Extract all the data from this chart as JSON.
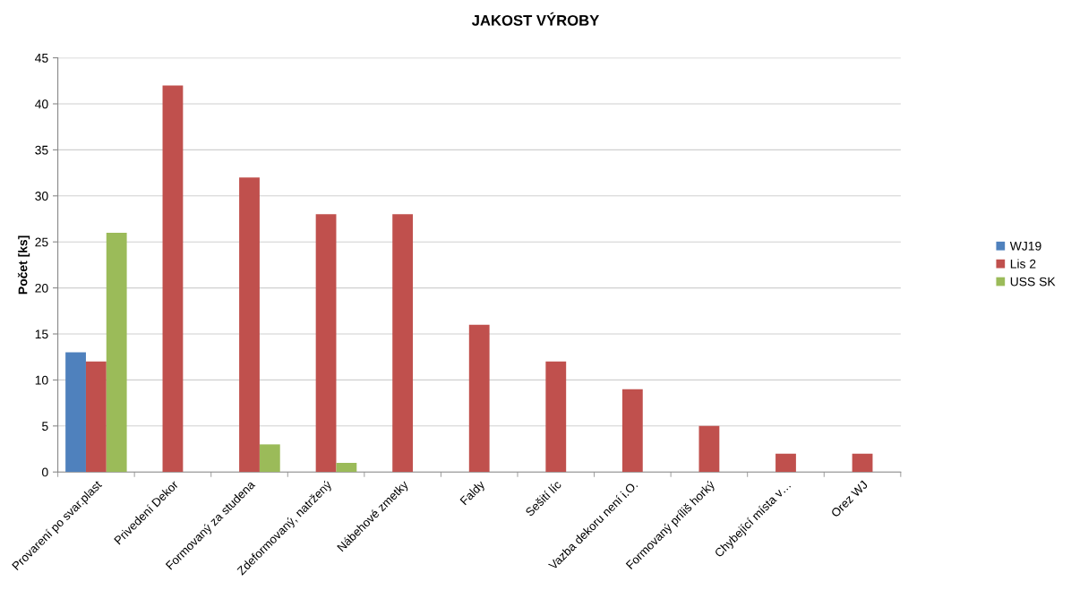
{
  "chart_data": {
    "type": "bar",
    "title": "JAKOST VÝROBY",
    "ylabel": "Počet [ks]",
    "categories": [
      "Provarení po svar.plast",
      "Privedení Dekor",
      "Formovaný za studena",
      "Zdeformovaný, natržený",
      "Nábehové zmetky",
      "Faldy",
      "Sešití líc",
      "Vazba dekoru není i.O.",
      "Formovaný príliš horký",
      "Chybející místa v…",
      "Orez WJ"
    ],
    "series": [
      {
        "name": "WJ19",
        "color": "#4f81bd",
        "values": [
          13,
          null,
          null,
          null,
          null,
          null,
          null,
          null,
          null,
          null,
          null
        ]
      },
      {
        "name": "Lis 2",
        "color": "#c0504d",
        "values": [
          12,
          42,
          32,
          28,
          28,
          16,
          12,
          9,
          5,
          2,
          2
        ]
      },
      {
        "name": "USS SK",
        "color": "#9bbb59",
        "values": [
          26,
          null,
          3,
          1,
          null,
          null,
          null,
          null,
          null,
          null,
          null
        ]
      }
    ],
    "ylim": [
      0,
      45
    ],
    "yticks": [
      0,
      5,
      10,
      15,
      20,
      25,
      30,
      35,
      40,
      45
    ],
    "grid": "y",
    "legend": "right"
  }
}
